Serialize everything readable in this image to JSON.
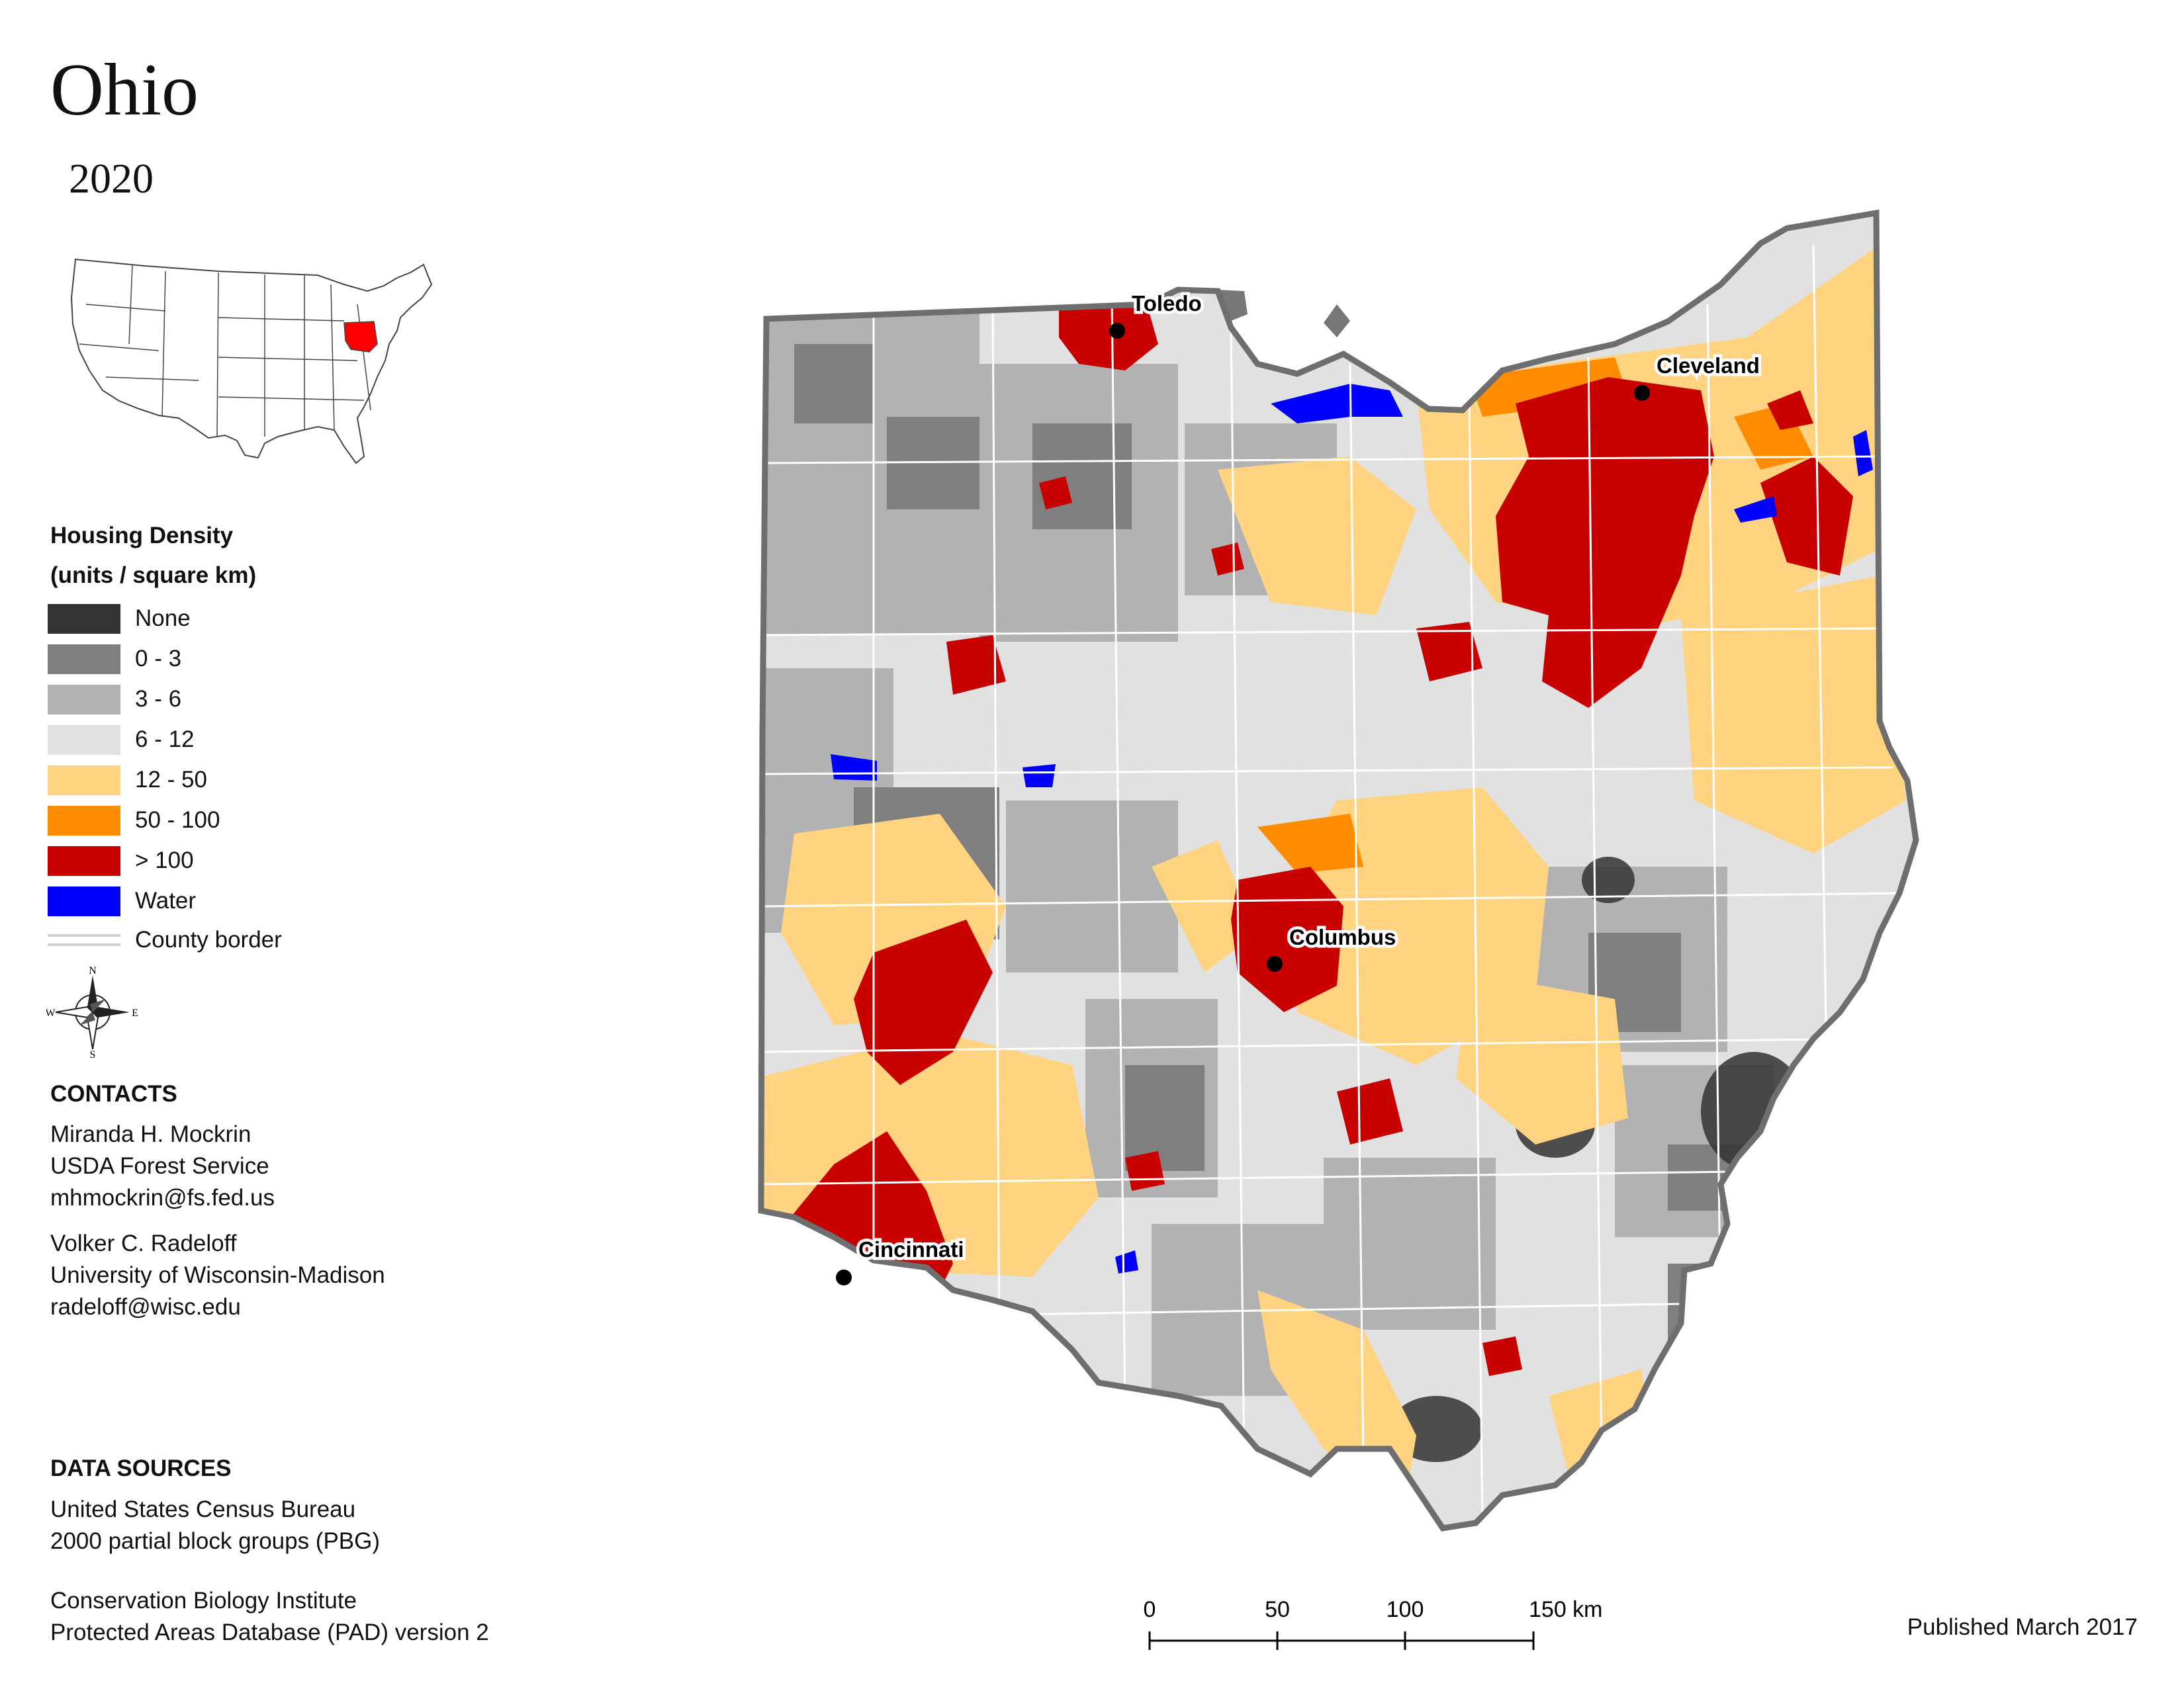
{
  "map": {
    "title": "Ohio",
    "year": "2020"
  },
  "legend": {
    "title_line1": "Housing Density",
    "title_line2": "(units / square km)",
    "items": [
      {
        "label": "None",
        "color": "#333333"
      },
      {
        "label": "0 - 3",
        "color": "#7f7f7f"
      },
      {
        "label": "3 - 6",
        "color": "#b2b2b2"
      },
      {
        "label": "6 - 12",
        "color": "#e1e1e1"
      },
      {
        "label": "12 - 50",
        "color": "#ffd37f"
      },
      {
        "label": "50 - 100",
        "color": "#ff8c00"
      },
      {
        "label": "> 100",
        "color": "#c80000"
      },
      {
        "label": "Water",
        "color": "#0000ff"
      }
    ],
    "border_label": "County border"
  },
  "compass": {
    "n": "N",
    "s": "S",
    "e": "E",
    "w": "W"
  },
  "cities": [
    {
      "name": "Toledo"
    },
    {
      "name": "Cleveland"
    },
    {
      "name": "Columbus"
    },
    {
      "name": "Cincinnati"
    }
  ],
  "contacts": {
    "heading": "CONTACTS",
    "person1": {
      "name": "Miranda H. Mockrin",
      "org": "USDA Forest Service",
      "email": "mhmockrin@fs.fed.us"
    },
    "person2": {
      "name": "Volker C. Radeloff",
      "org": "University of Wisconsin-Madison",
      "email": "radeloff@wisc.edu"
    }
  },
  "data_sources": {
    "heading": "DATA SOURCES",
    "source1_line1": "United States Census Bureau",
    "source1_line2": "2000 partial block groups (PBG)",
    "source2_line1": "Conservation Biology Institute",
    "source2_line2": "Protected Areas Database (PAD) version 2"
  },
  "scale": {
    "ticks": [
      "0",
      "50",
      "100",
      "150 km"
    ]
  },
  "published": "Published March 2017"
}
